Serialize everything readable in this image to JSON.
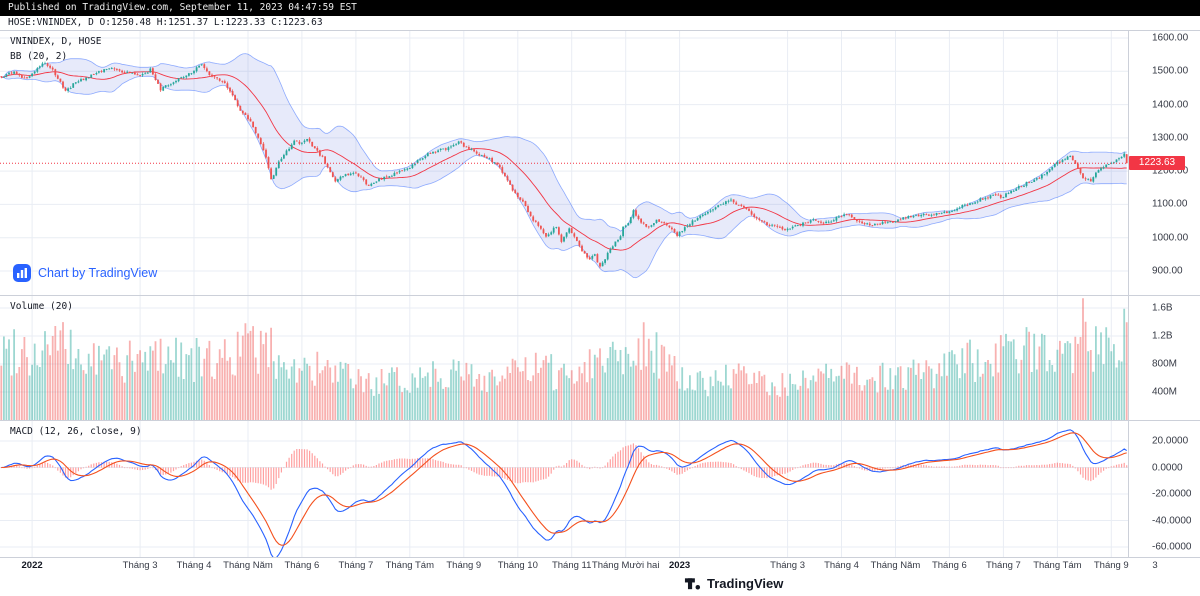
{
  "header": {
    "published_line": "Published on TradingView.com, September 11, 2023 04:47:59 EST",
    "symbol_ohlc_line": "HOSE:VNINDEX, D O:1250.48 H:1251.37 L:1223.33 C:1223.63"
  },
  "price_pane": {
    "title": "VNINDEX, D, HOSE",
    "indicator": "BB (20, 2)",
    "watermark": "Chart by TradingView",
    "last_price_label": "1223.63"
  },
  "volume_pane": {
    "title": "Volume (20)"
  },
  "macd_pane": {
    "title": "MACD (12, 26, close, 9)"
  },
  "footer": {
    "brand": "TradingView"
  },
  "colors": {
    "up": "#26a69a",
    "down": "#ef5350",
    "bb_band": "rgba(41,98,255,0.5)",
    "bb_fill": "rgba(73,89,214,0.13)",
    "bb_basis": "#f23645",
    "price_line": "#f23645",
    "tag_bg": "#f23645",
    "macd_line": "#2962ff",
    "signal_line": "#f4511e",
    "hist": "#ff5252",
    "grid": "#e9edf4",
    "border": "#ccd0d9",
    "axis_text": "#363a45",
    "accent": "#2962ff",
    "topbar_bg": "#000000"
  },
  "chart_data": [
    {
      "type": "candlestick",
      "pane": "price",
      "title": "VNINDEX, D, HOSE",
      "symbol": "HOSE:VNINDEX",
      "interval": "D",
      "overlay": "Bollinger Bands (20, 2)",
      "last_ohlc": {
        "open": 1250.48,
        "high": 1251.37,
        "low": 1223.33,
        "close": 1223.63
      },
      "last_price": 1223.63,
      "ylim": [
        876,
        1624
      ],
      "y_ticks": [
        {
          "v": 1600,
          "label": "1600.00"
        },
        {
          "v": 1500,
          "label": "1500.00"
        },
        {
          "v": 1400,
          "label": "1400.00"
        },
        {
          "v": 1300,
          "label": "1300.00"
        },
        {
          "v": 1200,
          "label": "1200.00"
        },
        {
          "v": 1100,
          "label": "1100.00"
        },
        {
          "v": 1000,
          "label": "1000.00"
        },
        {
          "v": 900,
          "label": "900.00"
        }
      ],
      "x_range": "Dec 2021 - Sep 11, 2023",
      "days_total": 439,
      "x_ticks": [
        {
          "day": 12,
          "label": "2022",
          "major": true
        },
        {
          "day": 54,
          "label": "Tháng 3"
        },
        {
          "day": 75,
          "label": "Tháng 4"
        },
        {
          "day": 96,
          "label": "Tháng Năm"
        },
        {
          "day": 117,
          "label": "Tháng 6"
        },
        {
          "day": 138,
          "label": "Tháng 7"
        },
        {
          "day": 159,
          "label": "Tháng Tám"
        },
        {
          "day": 180,
          "label": "Tháng 9"
        },
        {
          "day": 201,
          "label": "Tháng 10"
        },
        {
          "day": 222,
          "label": "Tháng 11"
        },
        {
          "day": 243,
          "label": "Tháng Mười hai"
        },
        {
          "day": 264,
          "label": "2023",
          "major": true
        },
        {
          "day": 306,
          "label": "Tháng 3"
        },
        {
          "day": 327,
          "label": "Tháng 4"
        },
        {
          "day": 348,
          "label": "Tháng Năm"
        },
        {
          "day": 369,
          "label": "Tháng 6"
        },
        {
          "day": 390,
          "label": "Tháng 7"
        },
        {
          "day": 411,
          "label": "Tháng Tám"
        },
        {
          "day": 432,
          "label": "Tháng 9"
        },
        {
          "day": 449,
          "label": "3"
        }
      ],
      "close_anchors": {
        "note": "[trading-day-index, close] keypoints read off the chart; daily candles are interpolated between them",
        "points": [
          [
            0,
            1482
          ],
          [
            5,
            1500
          ],
          [
            9,
            1478
          ],
          [
            12,
            1495
          ],
          [
            16,
            1525
          ],
          [
            20,
            1505
          ],
          [
            25,
            1438
          ],
          [
            29,
            1468
          ],
          [
            33,
            1478
          ],
          [
            38,
            1500
          ],
          [
            43,
            1508
          ],
          [
            48,
            1498
          ],
          [
            54,
            1485
          ],
          [
            58,
            1505
          ],
          [
            62,
            1446
          ],
          [
            66,
            1462
          ],
          [
            70,
            1480
          ],
          [
            74,
            1495
          ],
          [
            78,
            1522
          ],
          [
            82,
            1480
          ],
          [
            86,
            1472
          ],
          [
            90,
            1432
          ],
          [
            93,
            1380
          ],
          [
            95,
            1366
          ],
          [
            97,
            1348
          ],
          [
            100,
            1300
          ],
          [
            103,
            1240
          ],
          [
            105,
            1172
          ],
          [
            108,
            1228
          ],
          [
            111,
            1260
          ],
          [
            114,
            1292
          ],
          [
            116,
            1285
          ],
          [
            119,
            1295
          ],
          [
            122,
            1268
          ],
          [
            125,
            1240
          ],
          [
            128,
            1200
          ],
          [
            130,
            1170
          ],
          [
            133,
            1186
          ],
          [
            137,
            1198
          ],
          [
            140,
            1182
          ],
          [
            143,
            1155
          ],
          [
            146,
            1172
          ],
          [
            150,
            1184
          ],
          [
            154,
            1194
          ],
          [
            158,
            1206
          ],
          [
            162,
            1230
          ],
          [
            166,
            1252
          ],
          [
            170,
            1262
          ],
          [
            174,
            1270
          ],
          [
            178,
            1285
          ],
          [
            179,
            1282
          ],
          [
            182,
            1268
          ],
          [
            186,
            1248
          ],
          [
            190,
            1236
          ],
          [
            194,
            1210
          ],
          [
            197,
            1172
          ],
          [
            200,
            1132
          ],
          [
            203,
            1106
          ],
          [
            206,
            1062
          ],
          [
            209,
            1036
          ],
          [
            212,
            1000
          ],
          [
            214,
            1020
          ],
          [
            216,
            1036
          ],
          [
            218,
            990
          ],
          [
            220,
            1014
          ],
          [
            221,
            1027
          ],
          [
            223,
            1002
          ],
          [
            226,
            962
          ],
          [
            229,
            935
          ],
          [
            231,
            947
          ],
          [
            233,
            911
          ],
          [
            236,
            952
          ],
          [
            239,
            986
          ],
          [
            241,
            1008
          ],
          [
            242,
            1030
          ],
          [
            244,
            1048
          ],
          [
            246,
            1080
          ],
          [
            249,
            1048
          ],
          [
            252,
            1030
          ],
          [
            255,
            1052
          ],
          [
            258,
            1040
          ],
          [
            261,
            1022
          ],
          [
            263,
            1007
          ],
          [
            266,
            1032
          ],
          [
            270,
            1055
          ],
          [
            274,
            1072
          ],
          [
            278,
            1090
          ],
          [
            282,
            1108
          ],
          [
            284,
            1111
          ],
          [
            287,
            1098
          ],
          [
            290,
            1086
          ],
          [
            294,
            1058
          ],
          [
            298,
            1040
          ],
          [
            302,
            1034
          ],
          [
            305,
            1024
          ],
          [
            308,
            1032
          ],
          [
            312,
            1042
          ],
          [
            316,
            1052
          ],
          [
            320,
            1046
          ],
          [
            323,
            1052
          ],
          [
            326,
            1064
          ],
          [
            329,
            1072
          ],
          [
            332,
            1058
          ],
          [
            336,
            1042
          ],
          [
            340,
            1040
          ],
          [
            344,
            1046
          ],
          [
            347,
            1049
          ],
          [
            351,
            1058
          ],
          [
            355,
            1064
          ],
          [
            359,
            1068
          ],
          [
            363,
            1070
          ],
          [
            368,
            1075
          ],
          [
            372,
            1088
          ],
          [
            376,
            1102
          ],
          [
            380,
            1112
          ],
          [
            384,
            1122
          ],
          [
            387,
            1132
          ],
          [
            389,
            1120
          ],
          [
            392,
            1136
          ],
          [
            396,
            1152
          ],
          [
            400,
            1168
          ],
          [
            404,
            1182
          ],
          [
            407,
            1195
          ],
          [
            410,
            1222
          ],
          [
            413,
            1234
          ],
          [
            416,
            1243
          ],
          [
            418,
            1226
          ],
          [
            421,
            1180
          ],
          [
            424,
            1172
          ],
          [
            427,
            1204
          ],
          [
            430,
            1220
          ],
          [
            432,
            1224
          ],
          [
            434,
            1235
          ],
          [
            436,
            1245
          ],
          [
            437,
            1250
          ],
          [
            438,
            1223.63
          ]
        ]
      }
    },
    {
      "type": "bar",
      "pane": "volume",
      "title": "Volume (20)",
      "ylim_millions": [
        0,
        1786
      ],
      "y_ticks": [
        {
          "v": 1600,
          "label": "1.6B"
        },
        {
          "v": 1200,
          "label": "1.2B"
        },
        {
          "v": 800,
          "label": "800M"
        },
        {
          "v": 400,
          "label": "400M"
        }
      ],
      "volume_anchors": {
        "note": "[trading-day-index, volume in millions] approximate keypoints read off the chart",
        "points": [
          [
            0,
            950
          ],
          [
            8,
            1100
          ],
          [
            12,
            900
          ],
          [
            20,
            1150
          ],
          [
            25,
            1000
          ],
          [
            33,
            820
          ],
          [
            42,
            880
          ],
          [
            54,
            800
          ],
          [
            62,
            980
          ],
          [
            74,
            880
          ],
          [
            78,
            820
          ],
          [
            87,
            900
          ],
          [
            95,
            1050
          ],
          [
            103,
            1000
          ],
          [
            108,
            900
          ],
          [
            116,
            700
          ],
          [
            122,
            720
          ],
          [
            130,
            640
          ],
          [
            137,
            580
          ],
          [
            143,
            520
          ],
          [
            150,
            540
          ],
          [
            158,
            560
          ],
          [
            166,
            680
          ],
          [
            174,
            700
          ],
          [
            179,
            650
          ],
          [
            186,
            600
          ],
          [
            194,
            620
          ],
          [
            200,
            680
          ],
          [
            206,
            700
          ],
          [
            212,
            720
          ],
          [
            218,
            620
          ],
          [
            226,
            780
          ],
          [
            233,
            900
          ],
          [
            239,
            950
          ],
          [
            246,
            1050
          ],
          [
            252,
            1120
          ],
          [
            258,
            850
          ],
          [
            263,
            620
          ],
          [
            270,
            520
          ],
          [
            278,
            560
          ],
          [
            284,
            620
          ],
          [
            290,
            580
          ],
          [
            298,
            520
          ],
          [
            305,
            500
          ],
          [
            312,
            540
          ],
          [
            320,
            580
          ],
          [
            326,
            620
          ],
          [
            332,
            650
          ],
          [
            340,
            600
          ],
          [
            347,
            620
          ],
          [
            355,
            650
          ],
          [
            363,
            680
          ],
          [
            372,
            780
          ],
          [
            380,
            880
          ],
          [
            387,
            900
          ],
          [
            394,
            920
          ],
          [
            400,
            980
          ],
          [
            407,
            1050
          ],
          [
            410,
            1100
          ],
          [
            414,
            1250
          ],
          [
            417,
            1050
          ],
          [
            420,
            1620
          ],
          [
            423,
            1050
          ],
          [
            426,
            1000
          ],
          [
            429,
            1120
          ],
          [
            432,
            1150
          ],
          [
            435,
            980
          ],
          [
            438,
            1420
          ]
        ]
      }
    },
    {
      "type": "line",
      "pane": "macd",
      "title": "MACD (12, 26, close, 9)",
      "params": {
        "fast": 12,
        "slow": 26,
        "source": "close",
        "signal": 9
      },
      "derivation": "MACD, signal and histogram are computed from the interpolated daily closes of the price pane",
      "y_ticks": [
        {
          "v": 20,
          "label": "20.0000"
        },
        {
          "v": 0,
          "label": "0.0000"
        },
        {
          "v": -20,
          "label": "-20.0000"
        },
        {
          "v": -40,
          "label": "-40.0000"
        },
        {
          "v": -60,
          "label": "-60.0000"
        }
      ]
    }
  ]
}
